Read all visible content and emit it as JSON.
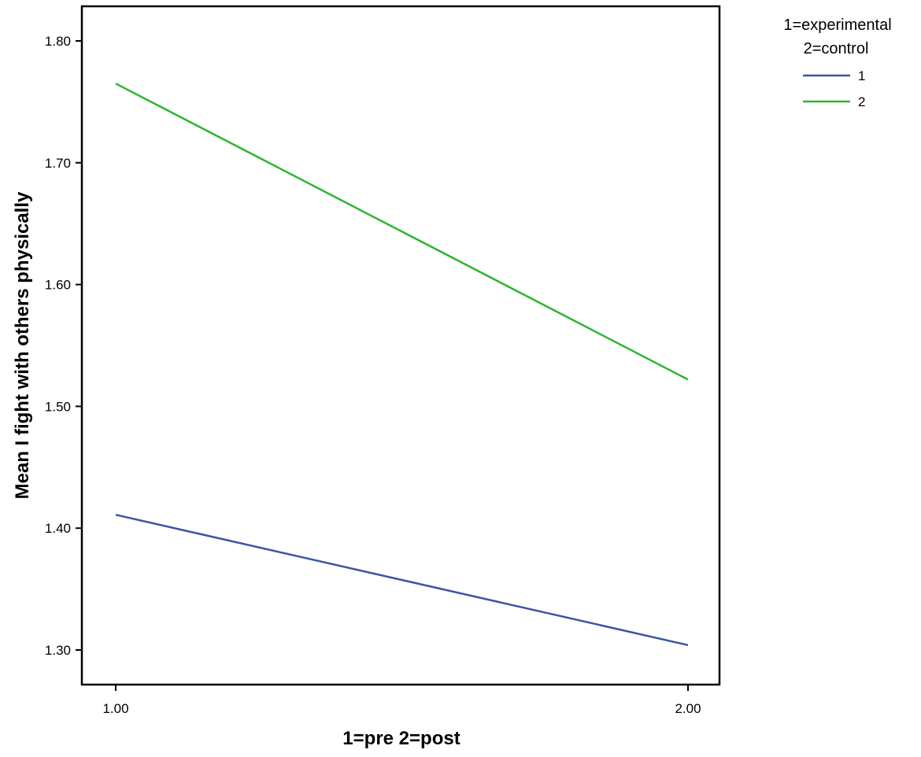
{
  "chart_data": {
    "type": "line",
    "x": [
      "1.00",
      "2.00"
    ],
    "xlabel": "1=pre 2=post",
    "ylabel": "Mean I fight with others physically",
    "yticks": [
      "1.30",
      "1.40",
      "1.50",
      "1.60",
      "1.70",
      "1.80"
    ],
    "grid": false,
    "legend_placement": "top-right outside",
    "legend_title": [
      "1=experimental",
      "2=control"
    ],
    "series": [
      {
        "name": "1",
        "values": [
          1.411,
          1.304
        ],
        "color": "#3b54a4"
      },
      {
        "name": "2",
        "values": [
          1.765,
          1.522
        ],
        "color": "#2db52d"
      }
    ]
  }
}
